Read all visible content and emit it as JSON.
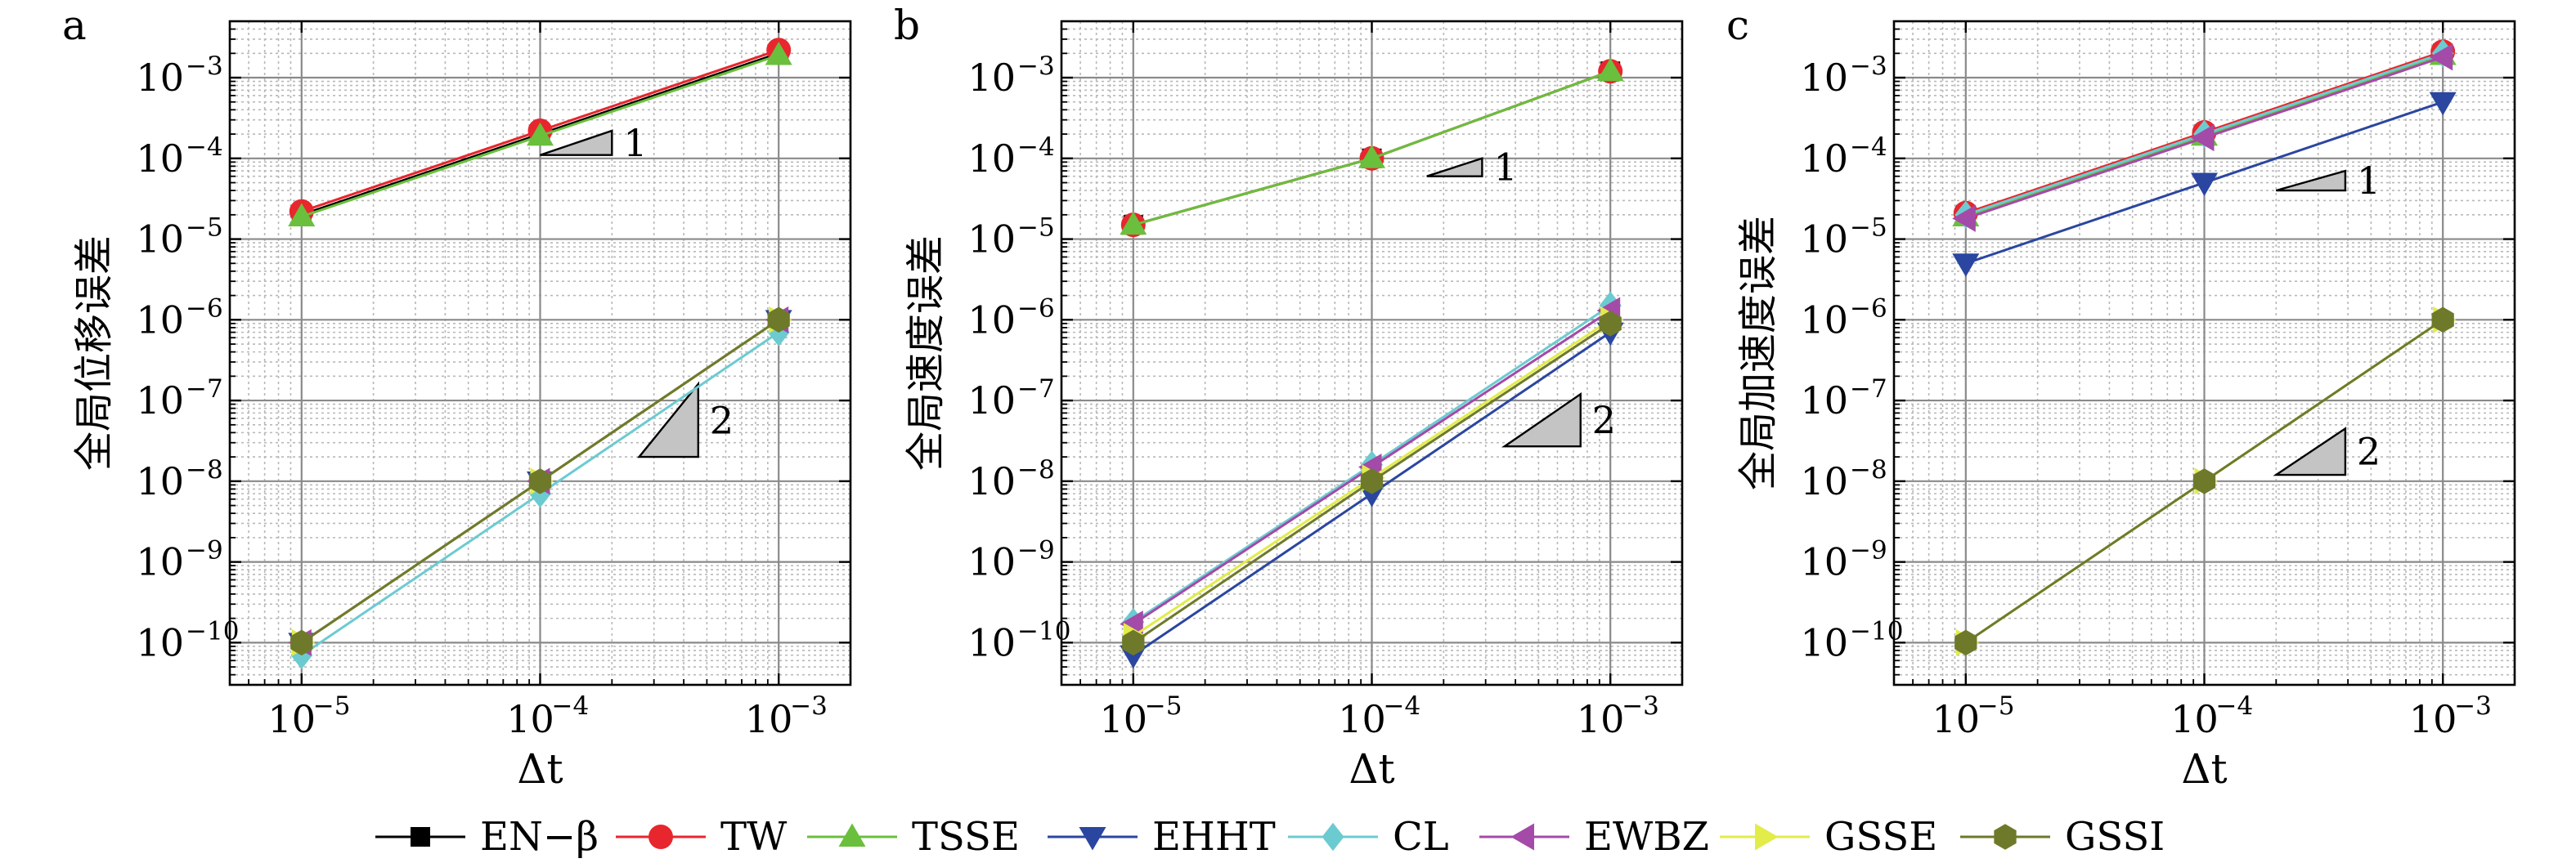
{
  "chart_data": [
    {
      "type": "line",
      "panel_label": "a",
      "xlabel": "Δt",
      "ylabel": "全局位移误差",
      "xscale": "log",
      "yscale": "log",
      "xlim": [
        5e-06,
        0.002
      ],
      "ylim": [
        3e-11,
        0.005
      ],
      "xticks": [
        1e-05,
        0.0001,
        0.001
      ],
      "yticks": [
        1e-10,
        1e-09,
        1e-08,
        1e-07,
        1e-06,
        1e-05,
        0.0001,
        0.001
      ],
      "grid": true,
      "x": [
        1e-05,
        0.0001,
        0.001
      ],
      "series": [
        {
          "name": "EN−β",
          "values": [
            2e-05,
            0.0002,
            0.002
          ]
        },
        {
          "name": "TW",
          "values": [
            2.2e-05,
            0.00022,
            0.0022
          ]
        },
        {
          "name": "TSSE",
          "values": [
            1.9e-05,
            0.00019,
            0.0019
          ]
        },
        {
          "name": "EHHT",
          "values": [
            1e-10,
            1e-08,
            1e-06
          ]
        },
        {
          "name": "CL",
          "values": [
            7e-11,
            7e-09,
            7e-07
          ]
        },
        {
          "name": "EWBZ",
          "values": [
            1e-10,
            1e-08,
            1e-06
          ]
        },
        {
          "name": "GSSE",
          "values": [
            1e-10,
            1e-08,
            1e-06
          ]
        },
        {
          "name": "GSSI",
          "values": [
            1e-10,
            1e-08,
            1e-06
          ]
        }
      ],
      "slope_markers": [
        {
          "label": "1",
          "x_start": 0.0001,
          "x_end": 0.0002,
          "y_start": 0.00011,
          "y_end": 0.00022
        },
        {
          "label": "2",
          "x_start": 0.00026,
          "x_end": 0.00046,
          "y_start": 2e-08,
          "y_end": 1.6e-07
        }
      ]
    },
    {
      "type": "line",
      "panel_label": "b",
      "xlabel": "Δt",
      "ylabel": "全局速度误差",
      "xscale": "log",
      "yscale": "log",
      "xlim": [
        5e-06,
        0.002
      ],
      "ylim": [
        3e-11,
        0.005
      ],
      "xticks": [
        1e-05,
        0.0001,
        0.001
      ],
      "yticks": [
        1e-10,
        1e-09,
        1e-08,
        1e-07,
        1e-06,
        1e-05,
        0.0001,
        0.001
      ],
      "grid": true,
      "x": [
        1e-05,
        0.0001,
        0.001
      ],
      "series": [
        {
          "name": "EN−β",
          "values": [
            1.5e-05,
            0.0001,
            0.0012
          ]
        },
        {
          "name": "TW",
          "values": [
            1.5e-05,
            0.0001,
            0.0012
          ]
        },
        {
          "name": "TSSE",
          "values": [
            1.5e-05,
            0.0001,
            0.0012
          ]
        },
        {
          "name": "EHHT",
          "values": [
            7e-11,
            7e-09,
            7e-07
          ]
        },
        {
          "name": "CL",
          "values": [
            1.8e-10,
            1.6e-08,
            1.5e-06
          ]
        },
        {
          "name": "EWBZ",
          "values": [
            1.7e-10,
            1.5e-08,
            1.3e-06
          ]
        },
        {
          "name": "GSSE",
          "values": [
            1.2e-10,
            1.1e-08,
            1e-06
          ]
        },
        {
          "name": "GSSI",
          "values": [
            1e-10,
            1e-08,
            9e-07
          ]
        }
      ],
      "slope_markers": [
        {
          "label": "1",
          "x_start": 0.00017,
          "x_end": 0.00029,
          "y_start": 6e-05,
          "y_end": 0.0001
        },
        {
          "label": "2",
          "x_start": 0.00036,
          "x_end": 0.00075,
          "y_start": 2.7e-08,
          "y_end": 1.2e-07
        }
      ]
    },
    {
      "type": "line",
      "panel_label": "c",
      "xlabel": "Δt",
      "ylabel": "全局加速度误差",
      "xscale": "log",
      "yscale": "log",
      "xlim": [
        5e-06,
        0.002
      ],
      "ylim": [
        3e-11,
        0.005
      ],
      "xticks": [
        1e-05,
        0.0001,
        0.001
      ],
      "yticks": [
        1e-10,
        1e-09,
        1e-08,
        1e-07,
        1e-06,
        1e-05,
        0.0001,
        0.001
      ],
      "grid": true,
      "x": [
        1e-05,
        0.0001,
        0.001
      ],
      "series": [
        {
          "name": "EN−β",
          "values": [
            2e-05,
            0.0002,
            0.002
          ]
        },
        {
          "name": "TW",
          "values": [
            2.1e-05,
            0.00021,
            0.0021
          ]
        },
        {
          "name": "TSSE",
          "values": [
            1.9e-05,
            0.00019,
            0.0019
          ]
        },
        {
          "name": "EHHT",
          "values": [
            5e-06,
            5e-05,
            0.0005
          ]
        },
        {
          "name": "CL",
          "values": [
            2e-05,
            0.0002,
            0.002
          ]
        },
        {
          "name": "EWBZ",
          "values": [
            1.8e-05,
            0.00018,
            0.0018
          ]
        },
        {
          "name": "GSSE",
          "values": [
            1e-10,
            1e-08,
            1e-06
          ]
        },
        {
          "name": "GSSI",
          "values": [
            1e-10,
            1e-08,
            1e-06
          ]
        }
      ],
      "slope_markers": [
        {
          "label": "1",
          "x_start": 0.0002,
          "x_end": 0.00039,
          "y_start": 4e-05,
          "y_end": 7e-05
        },
        {
          "label": "2",
          "x_start": 0.0002,
          "x_end": 0.00039,
          "y_start": 1.2e-08,
          "y_end": 4.5e-08
        }
      ]
    }
  ],
  "legend": {
    "placement": "bottom",
    "entries": [
      {
        "name": "EN−β",
        "color": "#000000",
        "marker": "square"
      },
      {
        "name": "TW",
        "color": "#e8262d",
        "marker": "circle"
      },
      {
        "name": "TSSE",
        "color": "#6abf3c",
        "marker": "triangle-up"
      },
      {
        "name": "EHHT",
        "color": "#2a46a0",
        "marker": "triangle-down"
      },
      {
        "name": "CL",
        "color": "#6ccbd1",
        "marker": "diamond"
      },
      {
        "name": "EWBZ",
        "color": "#a44aa8",
        "marker": "triangle-left"
      },
      {
        "name": "GSSE",
        "color": "#e2ec4a",
        "marker": "triangle-right"
      },
      {
        "name": "GSSI",
        "color": "#6e7a2a",
        "marker": "hexagon"
      }
    ]
  }
}
